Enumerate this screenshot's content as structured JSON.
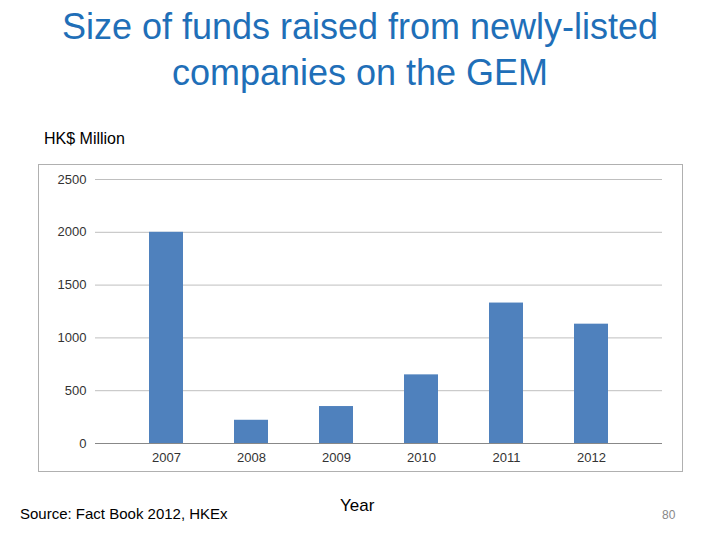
{
  "chart_data": {
    "type": "bar",
    "title": "Size of funds raised from newly-listed companies on the GEM",
    "y_label": "HK$ Million",
    "x_label": "Year",
    "categories": [
      "2007",
      "2008",
      "2009",
      "2010",
      "2011",
      "2012"
    ],
    "values": [
      2000,
      220,
      350,
      650,
      1330,
      1130
    ],
    "color": "#4f81bd",
    "ylim": [
      0,
      2500
    ],
    "yticks": [
      0,
      500,
      1000,
      1500,
      2000,
      2500
    ],
    "grid": true,
    "source": "Source: Fact Book 2012, HKEx",
    "page_number": "80"
  }
}
